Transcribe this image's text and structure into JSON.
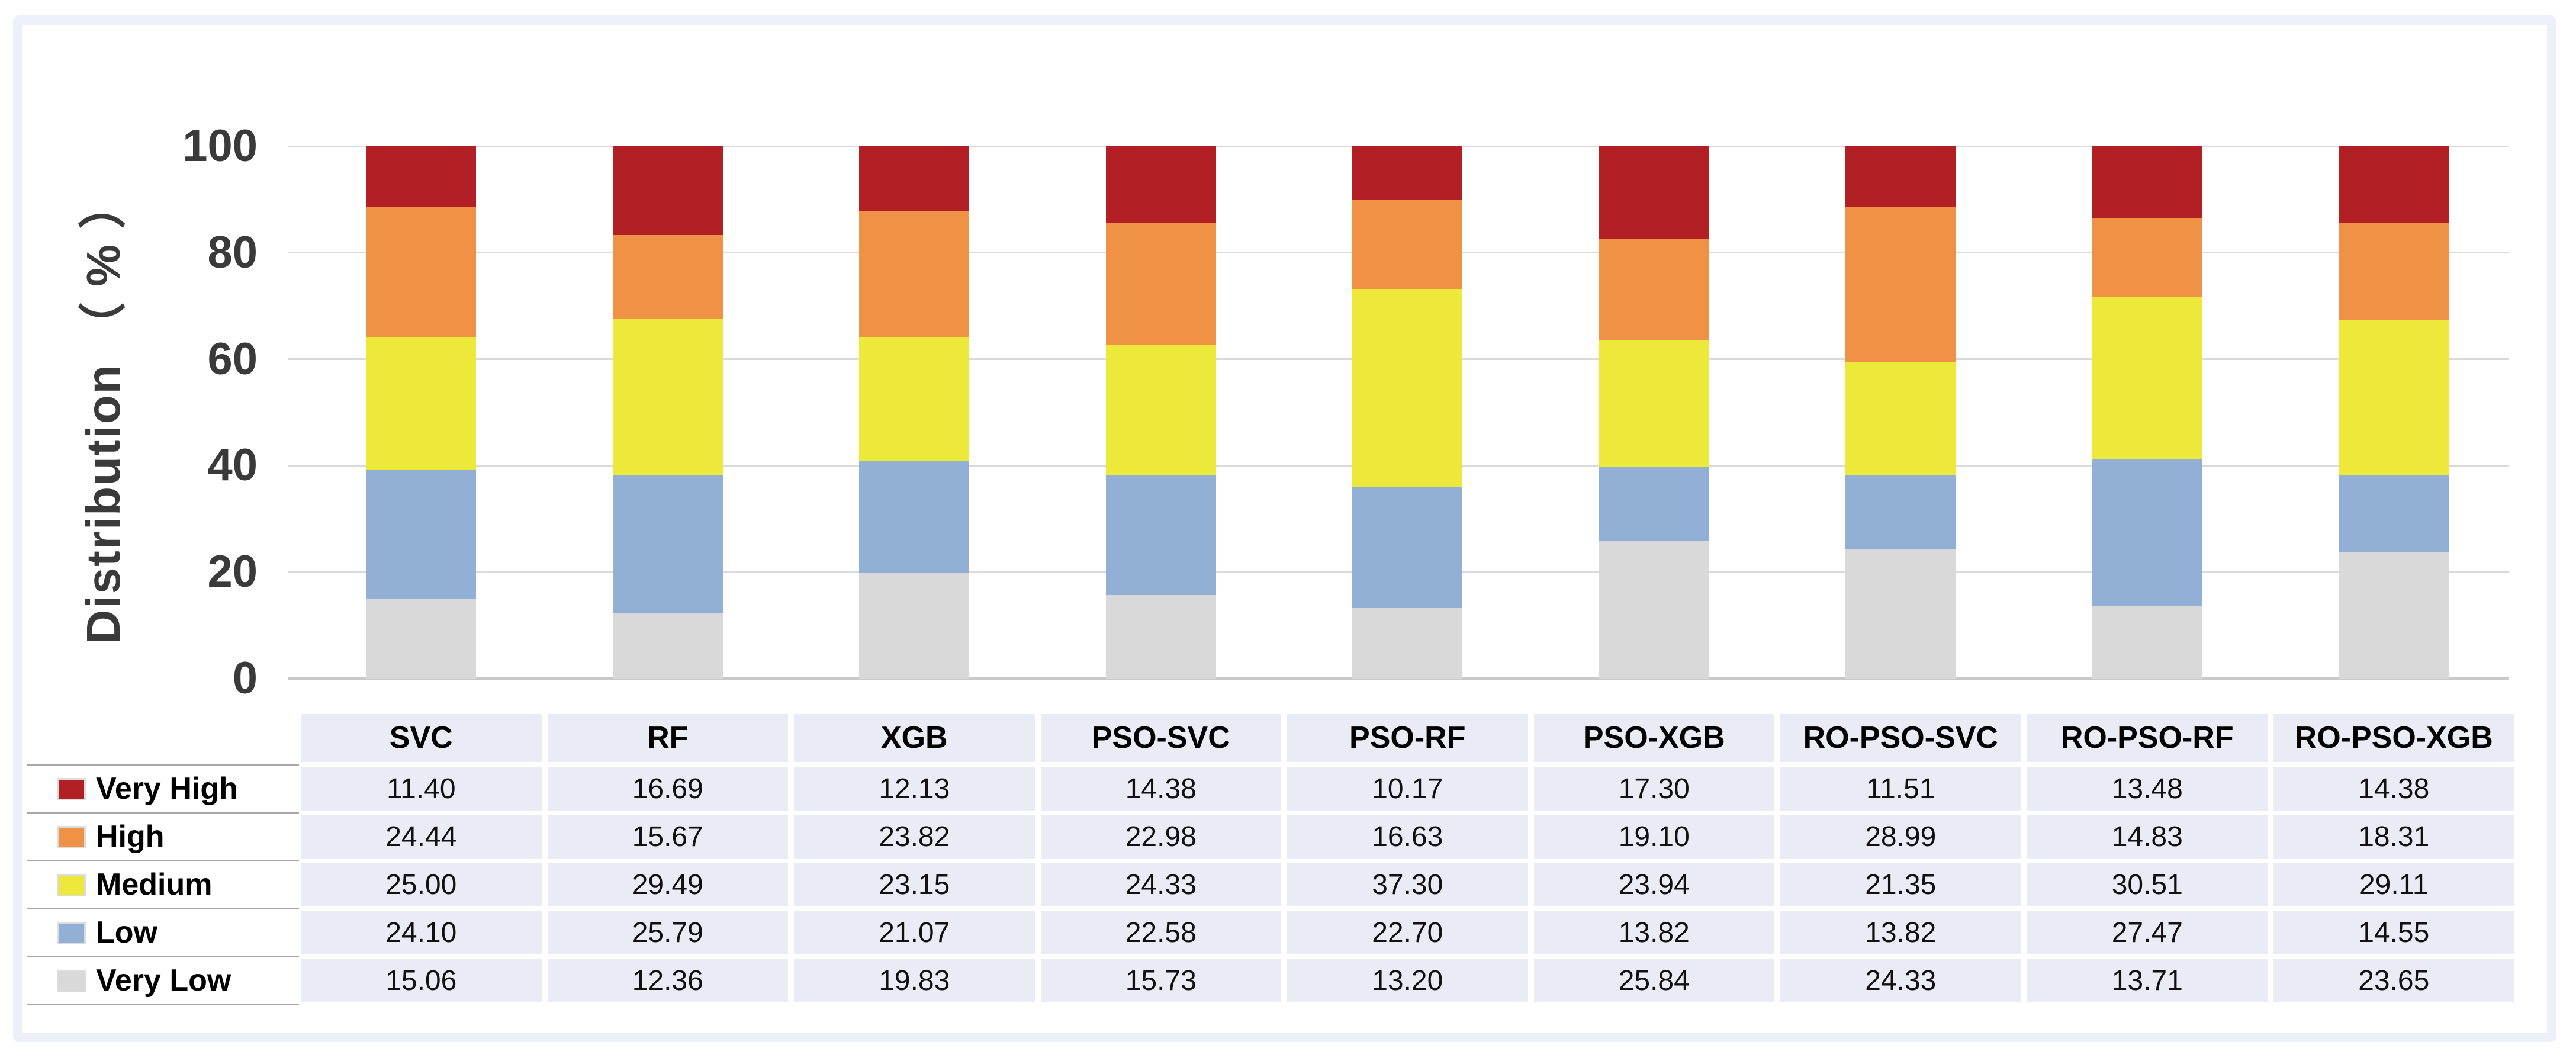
{
  "figure": {
    "background": "#FFFFFF",
    "frame_color": "#ECF0F8"
  },
  "chart_data": {
    "type": "bar",
    "stacked": true,
    "orientation": "vertical",
    "title": "",
    "xlabel": "",
    "ylabel": "Distribution （ % ）",
    "ylim": [
      0,
      100
    ],
    "yticks": [
      0,
      20,
      40,
      60,
      80,
      100
    ],
    "grid": true,
    "legend_position": "table-left-column",
    "value_format": "2dp",
    "table_cell_bg": "#E9EBF5",
    "categories": [
      "SVC",
      "RF",
      "XGB",
      "PSO-SVC",
      "PSO-RF",
      "PSO-XGB",
      "RO-PSO-SVC",
      "RO-PSO-RF",
      "RO-PSO-XGB"
    ],
    "series": [
      {
        "name": "Very High",
        "color": "#B21F24",
        "values": [
          11.4,
          16.69,
          12.13,
          14.38,
          10.17,
          17.3,
          11.51,
          13.48,
          14.38
        ]
      },
      {
        "name": "High",
        "color": "#F09246",
        "values": [
          24.44,
          15.67,
          23.82,
          22.98,
          16.63,
          19.1,
          28.99,
          14.83,
          18.31
        ]
      },
      {
        "name": "Medium",
        "color": "#EDE93A",
        "values": [
          25.0,
          29.49,
          23.15,
          24.33,
          37.3,
          23.94,
          21.35,
          30.51,
          29.11
        ]
      },
      {
        "name": "Low",
        "color": "#92B0D6",
        "values": [
          24.1,
          25.79,
          21.07,
          22.58,
          22.7,
          13.82,
          13.82,
          27.47,
          14.55
        ]
      },
      {
        "name": "Very Low",
        "color": "#D9D9D9",
        "values": [
          15.06,
          12.36,
          19.83,
          15.73,
          13.2,
          25.84,
          24.33,
          13.71,
          23.65
        ]
      }
    ],
    "stack_order_bottom_to_top": [
      "Very Low",
      "Low",
      "Medium",
      "High",
      "Very High"
    ]
  }
}
